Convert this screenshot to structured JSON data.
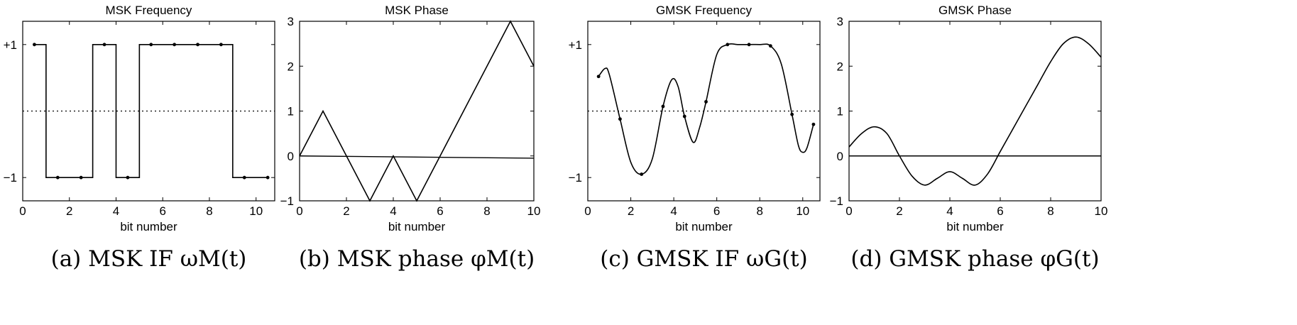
{
  "chart_data": [
    {
      "type": "line",
      "step": true,
      "title": "MSK Frequency",
      "xlabel": "bit number",
      "ylabel": "",
      "caption": "(a) MSK IF ωM(t)",
      "xlim": [
        0,
        10.8
      ],
      "ylim": [
        -1.35,
        1.35
      ],
      "xticks": [
        0,
        2,
        4,
        6,
        8,
        10
      ],
      "xtick_labels": [
        "0",
        "2",
        "4",
        "6",
        "8",
        "10"
      ],
      "yticks": [
        1,
        -1
      ],
      "ytick_labels": [
        "+1",
        "−1"
      ],
      "ref_line": {
        "y": 0,
        "style": "dotted"
      },
      "markers": true,
      "series": [
        {
          "x": [
            0.5,
            1.5,
            2.5,
            3.5,
            4.5,
            5.5,
            6.5,
            7.5,
            8.5,
            9.5,
            10.5
          ],
          "y": [
            1,
            -1,
            -1,
            1,
            -1,
            1,
            1,
            1,
            1,
            -1,
            -1
          ]
        }
      ]
    },
    {
      "type": "line",
      "title": "MSK Phase",
      "xlabel": "bit number",
      "ylabel": "",
      "caption": "(b) MSK phase φM(t)",
      "xlim": [
        0,
        10
      ],
      "ylim": [
        -1,
        3
      ],
      "xticks": [
        0,
        2,
        4,
        6,
        8,
        10
      ],
      "xtick_labels": [
        "0",
        "2",
        "4",
        "6",
        "8",
        "10"
      ],
      "yticks": [
        3,
        2,
        1,
        0,
        -1
      ],
      "ytick_labels": [
        "3",
        "2",
        "1",
        "0",
        "−1"
      ],
      "ref_line": {
        "x": [
          0,
          10
        ],
        "y": [
          0,
          -0.05
        ],
        "style": "solid"
      },
      "series": [
        {
          "x": [
            0,
            1,
            3,
            4,
            5,
            9,
            10
          ],
          "y": [
            0,
            1,
            -1,
            0,
            -1,
            3,
            2
          ]
        }
      ]
    },
    {
      "type": "line",
      "title": "GMSK Frequency",
      "xlabel": "bit number",
      "ylabel": "",
      "caption": "(c) GMSK IF ωG(t)",
      "xlim": [
        0,
        10.8
      ],
      "ylim": [
        -1.35,
        1.35
      ],
      "xticks": [
        0,
        2,
        4,
        6,
        8,
        10
      ],
      "xtick_labels": [
        "0",
        "2",
        "4",
        "6",
        "8",
        "10"
      ],
      "yticks": [
        1,
        -1
      ],
      "ytick_labels": [
        "+1",
        "−1"
      ],
      "ref_line": {
        "y": 0,
        "style": "dotted"
      },
      "markers": true,
      "marker_x": [
        0.5,
        1.5,
        2.5,
        3.5,
        4.5,
        5.5,
        6.5,
        7.5,
        8.5,
        9.5,
        10.5
      ],
      "series": [
        {
          "x": [
            0.5,
            0.8,
            1.0,
            1.5,
            2.0,
            2.5,
            3.0,
            3.5,
            3.9,
            4.2,
            4.5,
            4.9,
            5.2,
            5.5,
            6.0,
            6.5,
            7.0,
            7.5,
            8.0,
            8.5,
            9.0,
            9.5,
            9.8,
            10.0,
            10.2,
            10.5
          ],
          "y": [
            0.52,
            0.64,
            0.55,
            -0.12,
            -0.77,
            -0.95,
            -0.72,
            0.07,
            0.47,
            0.37,
            -0.08,
            -0.47,
            -0.25,
            0.14,
            0.85,
            1.0,
            1.0,
            1.0,
            1.0,
            0.98,
            0.71,
            -0.05,
            -0.52,
            -0.62,
            -0.55,
            -0.2
          ]
        }
      ]
    },
    {
      "type": "line",
      "title": "GMSK Phase",
      "xlabel": "bit number",
      "ylabel": "",
      "caption": "(d) GMSK phase φG(t)",
      "xlim": [
        0,
        10
      ],
      "ylim": [
        -1,
        3
      ],
      "xticks": [
        0,
        2,
        4,
        6,
        8,
        10
      ],
      "xtick_labels": [
        "0",
        "2",
        "4",
        "6",
        "8",
        "10"
      ],
      "yticks": [
        3,
        2,
        1,
        0,
        -1
      ],
      "ytick_labels": [
        "3",
        "2",
        "1",
        "0",
        "−1"
      ],
      "ref_line": {
        "y": 0,
        "style": "solid"
      },
      "series": [
        {
          "x": [
            0,
            0.5,
            1.0,
            1.5,
            2.0,
            2.5,
            3.0,
            3.5,
            4.0,
            4.5,
            5.0,
            5.5,
            6.0,
            6.5,
            7.0,
            7.5,
            8.0,
            8.5,
            9.0,
            9.5,
            10.0
          ],
          "y": [
            0.2,
            0.5,
            0.65,
            0.5,
            0.0,
            -0.45,
            -0.65,
            -0.5,
            -0.35,
            -0.5,
            -0.65,
            -0.4,
            0.1,
            0.6,
            1.1,
            1.6,
            2.1,
            2.5,
            2.65,
            2.5,
            2.2
          ]
        }
      ]
    }
  ]
}
